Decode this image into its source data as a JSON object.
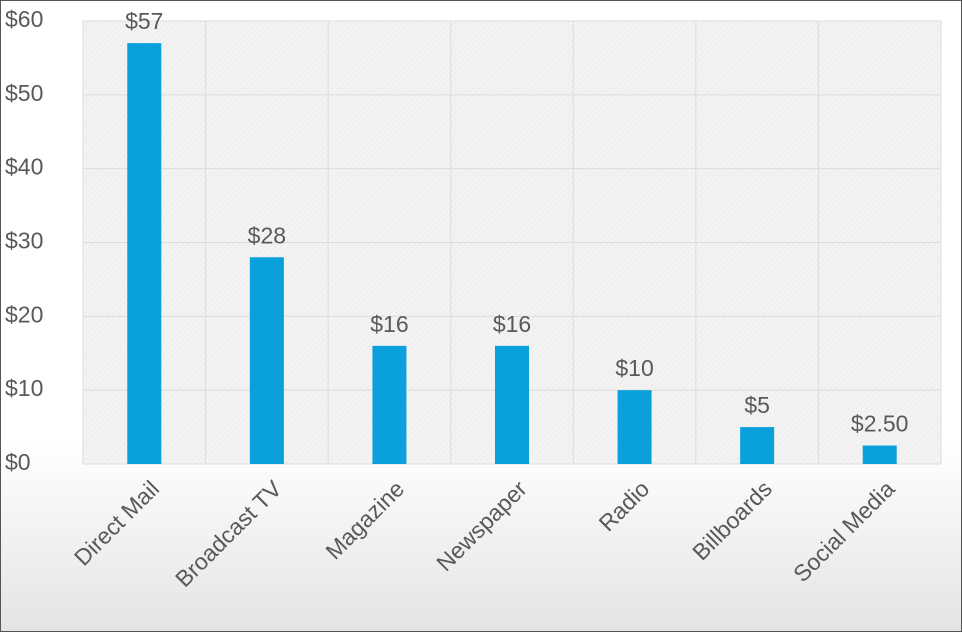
{
  "chart_data": {
    "type": "bar",
    "categories": [
      "Direct Mail",
      "Broadcast TV",
      "Magazine",
      "Newspaper",
      "Radio",
      "Billboards",
      "Social Media"
    ],
    "values": [
      57,
      28,
      16,
      16,
      10,
      5,
      2.5
    ],
    "value_labels": [
      "$57",
      "$28",
      "$16",
      "$16",
      "$10",
      "$5",
      "$2.50"
    ],
    "color": "#0aa0dc",
    "ylim": [
      0,
      60
    ],
    "yticks": [
      {
        "value": 0,
        "label": "$0"
      },
      {
        "value": 10,
        "label": "$10"
      },
      {
        "value": 20,
        "label": "$20"
      },
      {
        "value": 30,
        "label": "$30"
      },
      {
        "value": 40,
        "label": "$40"
      },
      {
        "value": 50,
        "label": "$50"
      },
      {
        "value": 60,
        "label": "$60"
      }
    ],
    "grid": true
  }
}
